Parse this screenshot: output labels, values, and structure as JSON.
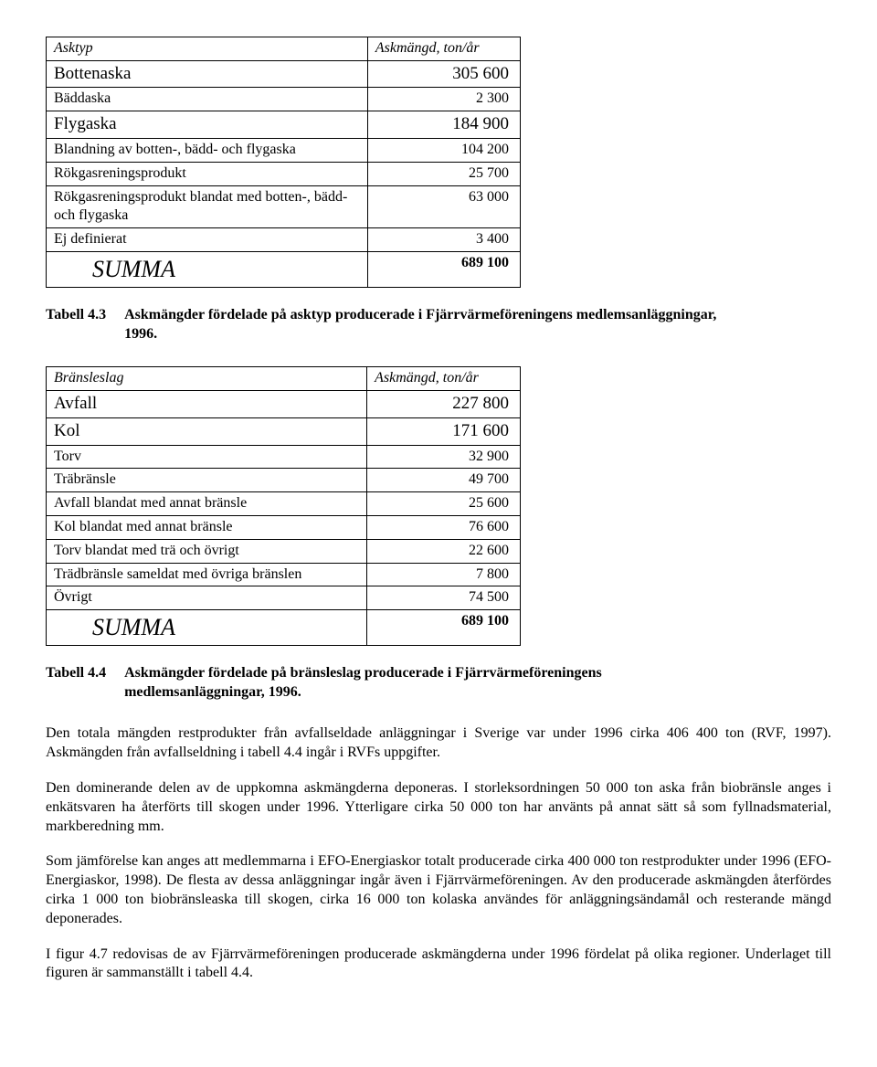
{
  "table1": {
    "headers": [
      "Asktyp",
      "Askmängd, ton/år"
    ],
    "rows": [
      {
        "label": "Bottenaska",
        "value": "305 600",
        "big": true
      },
      {
        "label": "Bäddaska",
        "value": "2 300",
        "big": false
      },
      {
        "label": "Flygaska",
        "value": "184 900",
        "big": true
      },
      {
        "label": "Blandning av botten-, bädd- och flygaska",
        "value": "104 200",
        "big": false
      },
      {
        "label": "Rökgasreningsprodukt",
        "value": "25 700",
        "big": false
      },
      {
        "label": "Rökgasreningsprodukt blandat med botten-, bädd- och flygaska",
        "value": "63 000",
        "big": false
      },
      {
        "label": "Ej definierat",
        "value": "3 400",
        "big": false
      }
    ],
    "sum_label": "SUMMA",
    "sum_value": "689 100"
  },
  "caption1": {
    "label": "Tabell 4.3",
    "text": "Askmängder fördelade på asktyp producerade i Fjärrvärmeföreningens medlemsanläggningar, 1996."
  },
  "table2": {
    "headers": [
      "Bränsleslag",
      "Askmängd, ton/år"
    ],
    "rows": [
      {
        "label": "Avfall",
        "value": "227 800",
        "big": true
      },
      {
        "label": "Kol",
        "value": "171 600",
        "big": true
      },
      {
        "label": "Torv",
        "value": "32 900",
        "big": false
      },
      {
        "label": "Träbränsle",
        "value": "49 700",
        "big": false
      },
      {
        "label": "Avfall blandat med annat bränsle",
        "value": "25 600",
        "big": false
      },
      {
        "label": "Kol blandat med annat bränsle",
        "value": "76 600",
        "big": false
      },
      {
        "label": "Torv blandat med trä och övrigt",
        "value": "22 600",
        "big": false
      },
      {
        "label": "Trädbränsle sameldat med övriga bränslen",
        "value": "7 800",
        "big": false
      },
      {
        "label": "Övrigt",
        "value": "74 500",
        "big": false
      }
    ],
    "sum_label": "SUMMA",
    "sum_value": "689 100"
  },
  "caption2": {
    "label": "Tabell 4.4",
    "text": "Askmängder fördelade på bränsleslag producerade i Fjärrvärmeföreningens medlemsanläggningar, 1996."
  },
  "paragraphs": [
    "Den totala mängden restprodukter från avfallseldade anläggningar i Sverige var under 1996 cirka 406 400 ton (RVF, 1997). Askmängden från avfallseldning i tabell 4.4 ingår i RVFs uppgifter.",
    "Den dominerande delen av de uppkomna askmängderna deponeras. I storleksordningen 50 000 ton aska från biobränsle anges i enkätsvaren ha återförts till skogen under 1996. Ytterligare cirka 50 000 ton har använts på annat sätt så som fyllnadsmaterial, markberedning mm.",
    "Som jämförelse kan anges att medlemmarna i EFO-Energiaskor totalt producerade cirka 400 000 ton restprodukter under 1996 (EFO-Energiaskor, 1998). De flesta av dessa anläggningar ingår även i Fjärrvärmeföreningen. Av den producerade askmängden återfördes cirka 1 000 ton biobränsleaska till skogen, cirka 16 000 ton kolaska användes för anläggningsändamål och resterande mängd deponerades.",
    "I figur 4.7 redovisas de av Fjärrvärmeföreningen producerade askmängderna under 1996 fördelat på olika regioner. Underlaget till figuren är sammanställt i tabell 4.4."
  ]
}
